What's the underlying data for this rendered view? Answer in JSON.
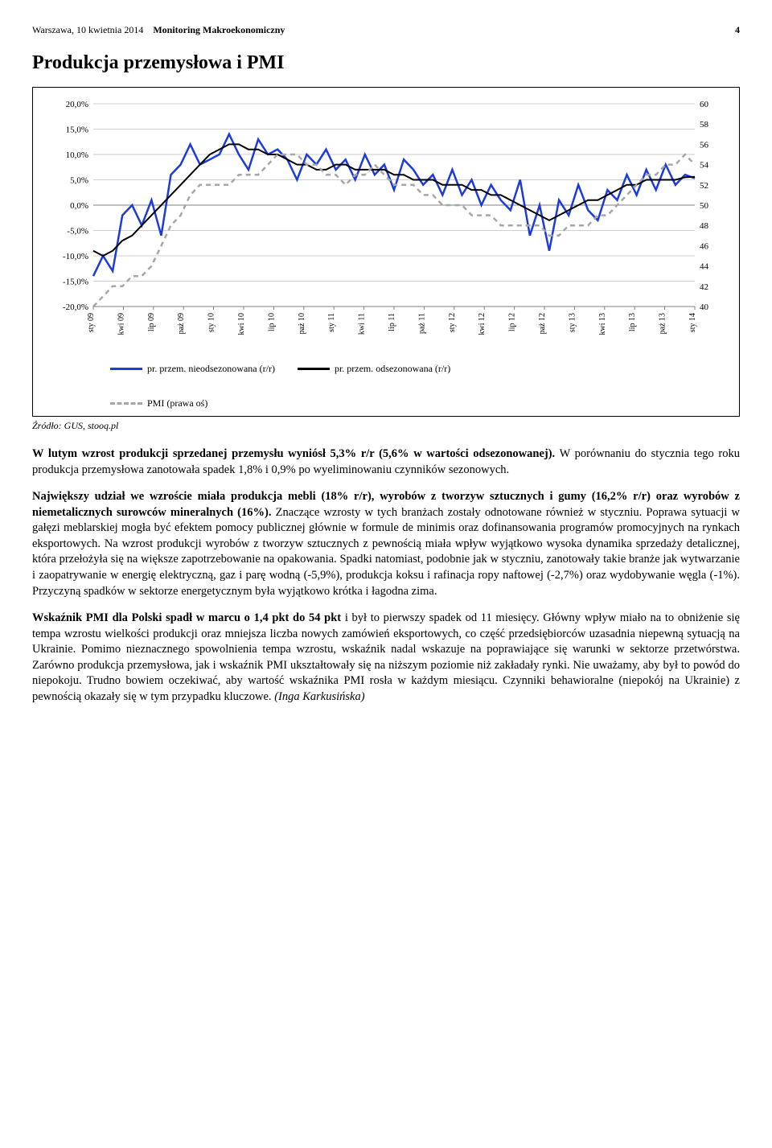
{
  "header": {
    "city_date": "Warszawa, 10 kwietnia 2014",
    "doc_title": "Monitoring Makroekonomiczny",
    "page_number": "4"
  },
  "section_title": "Produkcja przemysłowa i PMI",
  "chart": {
    "type": "dual-axis-line",
    "background_color": "#ffffff",
    "left_axis": {
      "min": -20.0,
      "max": 20.0,
      "ticks": [
        "20,0%",
        "15,0%",
        "10,0%",
        "5,0%",
        "0,0%",
        "-5,0%",
        "-10,0%",
        "-15,0%",
        "-20,0%"
      ],
      "tick_vals": [
        20,
        15,
        10,
        5,
        0,
        -5,
        -10,
        -15,
        -20
      ]
    },
    "right_axis": {
      "min": 40,
      "max": 60,
      "ticks": [
        "60",
        "58",
        "56",
        "54",
        "52",
        "50",
        "48",
        "46",
        "44",
        "42",
        "40"
      ],
      "tick_vals": [
        60,
        58,
        56,
        54,
        52,
        50,
        48,
        46,
        44,
        42,
        40
      ]
    },
    "x_labels": [
      "sty 09",
      "kwi 09",
      "lip 09",
      "paż 09",
      "sty 10",
      "kwi 10",
      "lip 10",
      "paż 10",
      "sty 11",
      "kwi 11",
      "lip 11",
      "paż 11",
      "sty 12",
      "kwi 12",
      "lip 12",
      "paż 12",
      "sty 13",
      "kwi 13",
      "lip 13",
      "paż 13",
      "sty 14"
    ],
    "x_label_fontsize": 10,
    "tick_fontsize": 11,
    "grid_color": "#bfbfbf",
    "series": [
      {
        "name": "pr. przem. nieodsezonowana (r/r)",
        "color": "#1c3bd9",
        "width": 2.5,
        "dash": "none",
        "axis": "left",
        "values": [
          -14.0,
          -10.0,
          -13.0,
          -2.0,
          0.0,
          -4.0,
          1.0,
          -6.0,
          6.0,
          8.0,
          12.0,
          8.0,
          9.0,
          10.0,
          14.0,
          10.0,
          7.0,
          13.0,
          10.0,
          11.0,
          9.0,
          5.0,
          10.0,
          8.0,
          11.0,
          7.0,
          9.0,
          5.0,
          10.0,
          6.0,
          8.0,
          3.0,
          9.0,
          7.0,
          4.0,
          6.0,
          2.0,
          7.0,
          2.0,
          5.0,
          0.0,
          4.0,
          1.0,
          -1.0,
          5.0,
          -6.0,
          0.0,
          -9.0,
          1.0,
          -2.0,
          4.0,
          -1.0,
          -3.0,
          3.0,
          1.0,
          6.0,
          2.0,
          7.0,
          3.0,
          8.0,
          4.0,
          6.0,
          5.3
        ]
      },
      {
        "name": "pr. przem. odsezonowana (r/r)",
        "color": "#000000",
        "width": 2,
        "dash": "none",
        "axis": "left",
        "values": [
          -9.0,
          -10.0,
          -9.0,
          -7.0,
          -6.0,
          -4.0,
          -2.0,
          0.0,
          2.0,
          4.0,
          6.0,
          8.0,
          10.0,
          11.0,
          12.0,
          12.0,
          11.0,
          11.0,
          10.0,
          10.0,
          9.0,
          8.0,
          8.0,
          7.0,
          7.0,
          8.0,
          8.0,
          7.0,
          7.0,
          7.0,
          7.0,
          6.0,
          6.0,
          5.0,
          5.0,
          5.0,
          4.0,
          4.0,
          4.0,
          3.0,
          3.0,
          2.0,
          2.0,
          1.0,
          0.0,
          -1.0,
          -2.0,
          -3.0,
          -2.0,
          -1.0,
          0.0,
          1.0,
          1.0,
          2.0,
          3.0,
          4.0,
          4.0,
          5.0,
          5.0,
          5.0,
          5.0,
          5.5,
          5.6
        ]
      },
      {
        "name": "PMI (prawa oś)",
        "color": "#a6a6a6",
        "width": 2.5,
        "dash": "6,5",
        "axis": "right",
        "values": [
          40,
          41,
          42,
          42,
          43,
          43,
          44,
          46,
          48,
          49,
          51,
          52,
          52,
          52,
          52,
          53,
          53,
          53,
          54,
          55,
          55,
          55,
          54,
          54,
          53,
          53,
          52,
          53,
          53,
          54,
          53,
          52,
          52,
          52,
          51,
          51,
          50,
          50,
          50,
          49,
          49,
          49,
          48,
          48,
          48,
          48,
          48,
          47,
          47,
          48,
          48,
          48,
          49,
          49,
          50,
          51,
          52,
          53,
          53,
          54,
          54,
          55,
          54
        ]
      }
    ],
    "legend_labels": {
      "s1": "pr. przem. nieodsezonowana (r/r)",
      "s2": "pr. przem. odsezonowana (r/r)",
      "s3": "PMI (prawa oś)"
    }
  },
  "source_label": "Źródło: GUS, stooq.pl",
  "paragraphs": {
    "p1_bold": "W lutym wzrost produkcji sprzedanej przemysłu wyniósł 5,3% r/r (5,6% w wartości odsezonowanej).",
    "p1_rest": " W porównaniu do stycznia tego roku produkcja przemysłowa zanotowała spadek 1,8% i 0,9% po wyeliminowaniu czynników sezonowych.",
    "p2_bold": "Największy udział we wzroście miała produkcja mebli (18% r/r), wyrobów z tworzyw sztucznych i gumy (16,2% r/r) oraz wyrobów z niemetalicznych surowców mineralnych (16%).",
    "p2_rest": " Znaczące wzrosty w tych branżach zostały odnotowane również w styczniu. Poprawa sytuacji w gałęzi meblarskiej mogła być efektem pomocy publicznej głównie w formule de minimis oraz dofinansowania programów promocyjnych na rynkach eksportowych. Na wzrost produkcji wyrobów z tworzyw sztucznych z pewnością miała wpływ wyjątkowo wysoka dynamika sprzedaży detalicznej, która przełożyła się na większe zapotrzebowanie na opakowania. Spadki natomiast, podobnie jak w styczniu, zanotowały takie branże jak wytwarzanie i zaopatrywanie w energię elektryczną, gaz i parę wodną (-5,9%), produkcja koksu i rafinacja ropy naftowej (-2,7%) oraz wydobywanie węgla (-1%). Przyczyną spadków w sektorze energetycznym była wyjątkowo krótka i łagodna zima.",
    "p3_bold": "Wskaźnik PMI dla Polski spadł w marcu o 1,4 pkt do 54 pkt",
    "p3_rest": " i był to pierwszy spadek od 11 miesięcy. Główny wpływ miało na to obniżenie się tempa wzrostu wielkości produkcji oraz mniejsza liczba nowych zamówień eksportowych, co część przedsiębiorców uzasadnia niepewną sytuacją na Ukrainie. Pomimo nieznacznego spowolnienia tempa wzrostu, wskaźnik nadal wskazuje na poprawiające się warunki w sektorze przetwórstwa. Zarówno produkcja przemysłowa, jak i wskaźnik PMI ukształtowały się na niższym poziomie niż zakładały rynki. Nie uważamy, aby był to powód do niepokoju. Trudno bowiem oczekiwać, aby wartość wskaźnika PMI rosła w każdym miesiącu. Czynniki behawioralne (niepokój na Ukrainie) z pewnością okazały się w tym przypadku kluczowe. ",
    "p3_author": "(Inga Karkusińska)"
  }
}
